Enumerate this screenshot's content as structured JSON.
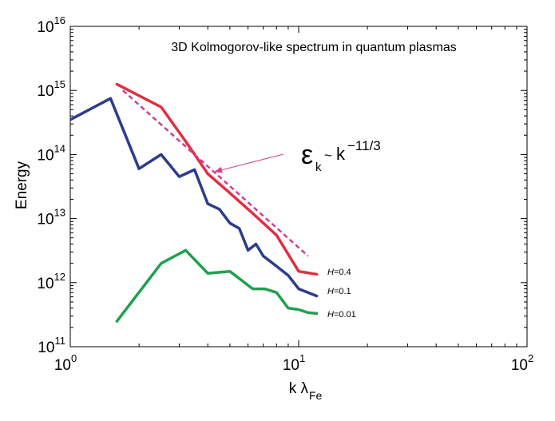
{
  "chart_data": {
    "type": "line",
    "title": "3D Kolmogorov-like spectrum in quantum plasmas",
    "xlabel": {
      "main": "k λ",
      "sub": "Fe"
    },
    "ylabel": "Energy",
    "xscale": "log",
    "yscale": "log",
    "xlim": [
      1,
      100
    ],
    "ylim": [
      100000000000.0,
      1e+16
    ],
    "xticks": [
      {
        "value": 1,
        "base": "10",
        "exp": "0"
      },
      {
        "value": 10,
        "base": "10",
        "exp": "1"
      },
      {
        "value": 100,
        "base": "10",
        "exp": "2"
      }
    ],
    "yticks": [
      {
        "value": 100000000000.0,
        "base": "10",
        "exp": "11"
      },
      {
        "value": 1000000000000.0,
        "base": "10",
        "exp": "12"
      },
      {
        "value": 10000000000000.0,
        "base": "10",
        "exp": "13"
      },
      {
        "value": 100000000000000.0,
        "base": "10",
        "exp": "14"
      },
      {
        "value": 1000000000000000.0,
        "base": "10",
        "exp": "15"
      },
      {
        "value": 1e+16,
        "base": "10",
        "exp": "16"
      }
    ],
    "series": [
      {
        "name": "H=0.4",
        "label": {
          "var": "H",
          "rest": "=0.4"
        },
        "color": "#e03040",
        "x": [
          1.6,
          2.5,
          3.2,
          4.0,
          5.0,
          6.3,
          8.0,
          10.0,
          12.0
        ],
        "y": [
          1250000000000000.0,
          550000000000000.0,
          160000000000000.0,
          50000000000000.0,
          25000000000000.0,
          12000000000000.0,
          5500000000000.0,
          1500000000000.0,
          1350000000000.0
        ]
      },
      {
        "name": "H=0.1",
        "label": {
          "var": "H",
          "rest": "=0.1"
        },
        "color": "#2a3c8c",
        "x": [
          1.0,
          1.5,
          2.0,
          2.5,
          3.0,
          3.5,
          4.0,
          4.5,
          5.0,
          5.5,
          6.0,
          6.5,
          7.0,
          8.0,
          9.0,
          10.0,
          11.0,
          12.0
        ],
        "y": [
          350000000000000.0,
          750000000000000.0,
          60000000000000.0,
          100000000000000.0,
          45000000000000.0,
          58000000000000.0,
          17000000000000.0,
          14000000000000.0,
          8500000000000.0,
          7000000000000.0,
          3200000000000.0,
          4000000000000.0,
          2600000000000.0,
          1800000000000.0,
          1300000000000.0,
          800000000000.0,
          700000000000.0,
          620000000000.0
        ]
      },
      {
        "name": "H=0.01",
        "label": {
          "var": "H",
          "rest": "=0.01"
        },
        "color": "#20a050",
        "x": [
          1.6,
          2.5,
          3.2,
          4.0,
          5.0,
          5.6,
          6.3,
          7.1,
          8.0,
          9.0,
          10.0,
          11.0,
          12.0
        ],
        "y": [
          250000000000.0,
          2000000000000.0,
          3200000000000.0,
          1400000000000.0,
          1500000000000.0,
          1100000000000.0,
          800000000000.0,
          800000000000.0,
          700000000000.0,
          400000000000.0,
          380000000000.0,
          340000000000.0,
          330000000000.0
        ]
      }
    ],
    "fit_line": {
      "name": "k^-11/3 fit",
      "color": "#d04090",
      "style": "dashed",
      "x": [
        1.7,
        11.0
      ],
      "y": [
        1000000000000000.0,
        2600000000000.0
      ]
    },
    "annotation": {
      "symbol": "ε",
      "sub": "k",
      "tilde": "~",
      "base": "k",
      "exp": "−11/3",
      "arrow_color": "#d04090",
      "points_to": {
        "x": 4.3,
        "y": 54000000000000.0
      }
    }
  }
}
